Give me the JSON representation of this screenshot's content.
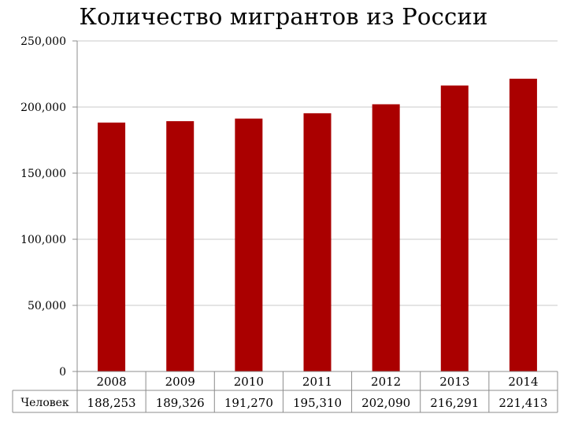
{
  "chart_data": {
    "type": "bar",
    "title": "Количество мигрантов из России",
    "categories": [
      "2008",
      "2009",
      "2010",
      "2011",
      "2012",
      "2013",
      "2014"
    ],
    "series": [
      {
        "name": "Человек",
        "values": [
          188253,
          189326,
          191270,
          195310,
          202090,
          216291,
          221413
        ],
        "value_labels": [
          "188,253",
          "189,326",
          "191,270",
          "195,310",
          "202,090",
          "216,291",
          "221,413"
        ],
        "color": "#aa0000"
      }
    ],
    "y_ticks": [
      {
        "value": 0,
        "label": "0"
      },
      {
        "value": 50000,
        "label": "50,000"
      },
      {
        "value": 100000,
        "label": "100,000"
      },
      {
        "value": 150000,
        "label": "150,000"
      },
      {
        "value": 200000,
        "label": "200,000"
      },
      {
        "value": 250000,
        "label": "250,000"
      }
    ],
    "ylim": [
      0,
      250000
    ],
    "grid": true,
    "legend": "data-table-row",
    "colors": {
      "bar": "#aa0000",
      "grid": "#c8c8c8",
      "axis": "#8c8c8c"
    }
  }
}
